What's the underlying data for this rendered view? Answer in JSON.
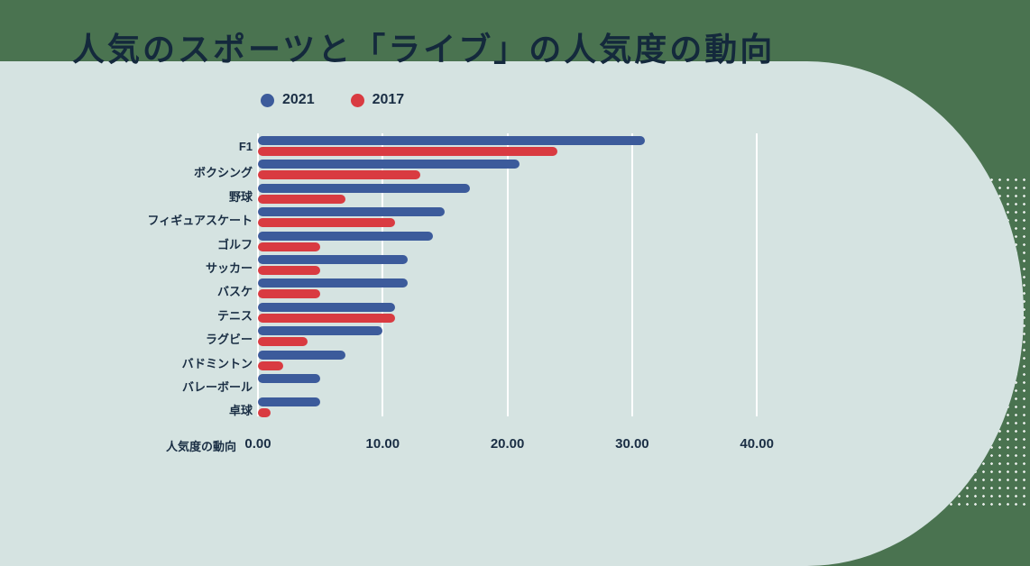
{
  "title": "人気のスポーツと「ライブ」の人気度の動向",
  "legend": {
    "items": [
      {
        "label": "2021",
        "color": "#3c5b9b"
      },
      {
        "label": "2017",
        "color": "#d93b41"
      }
    ]
  },
  "x_axis": {
    "label": "人気度の動向",
    "ticks": [
      "0.00",
      "10.00",
      "20.00",
      "30.00",
      "40.00"
    ],
    "tick_values": [
      0,
      10,
      20,
      30,
      40
    ]
  },
  "chart_data": {
    "type": "bar",
    "orientation": "horizontal",
    "title": "人気のスポーツと「ライブ」の人気度の動向",
    "xlabel": "人気度の動向",
    "xlim": [
      0,
      40
    ],
    "grid": true,
    "legend_position": "top-left",
    "categories": [
      "F1",
      "ボクシング",
      "野球",
      "フィギュアスケート",
      "ゴルフ",
      "サッカー",
      "バスケ",
      "テニス",
      "ラグビー",
      "バドミントン",
      "バレーボール",
      "卓球"
    ],
    "series": [
      {
        "name": "2021",
        "color": "#3c5b9b",
        "values": [
          31,
          21,
          17,
          15,
          14,
          12,
          12,
          11,
          10,
          7,
          5,
          5
        ]
      },
      {
        "name": "2017",
        "color": "#d93b41",
        "values": [
          24,
          13,
          7,
          11,
          5,
          5,
          5,
          11,
          4,
          2,
          0,
          1
        ]
      }
    ]
  },
  "colors": {
    "background": "#4a7350",
    "panel": "#d5e3e1",
    "bar_2021": "#3c5b9b",
    "bar_2017": "#d93b41",
    "text": "#1a2e44",
    "gridline": "#ffffff"
  }
}
